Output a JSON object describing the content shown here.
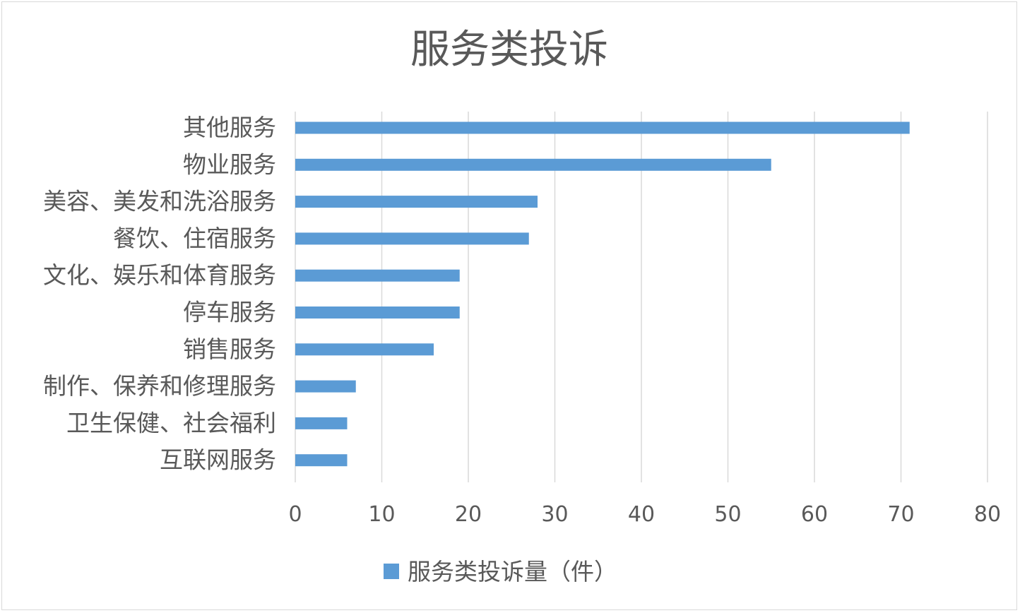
{
  "chart_data": {
    "type": "bar",
    "orientation": "horizontal",
    "title": "服务类投诉",
    "categories": [
      "其他服务",
      "物业服务",
      "美容、美发和洗浴服务",
      "餐饮、住宿服务",
      "文化、娱乐和体育服务",
      "停车服务",
      "销售服务",
      "制作、保养和修理服务",
      "卫生保健、社会福利",
      "互联网服务"
    ],
    "series": [
      {
        "name": "服务类投诉量（件）",
        "values": [
          71,
          55,
          28,
          27,
          19,
          19,
          16,
          7,
          6,
          6
        ],
        "color": "#5b9bd5"
      }
    ],
    "xlim": [
      0,
      80
    ],
    "xticks": [
      "0",
      "10",
      "20",
      "30",
      "40",
      "50",
      "60",
      "70",
      "80"
    ],
    "grid": "vertical",
    "legend_position": "bottom",
    "colors": {
      "bar": "#5b9bd5",
      "grid": "#d9d9d9",
      "text": "#595959"
    }
  }
}
